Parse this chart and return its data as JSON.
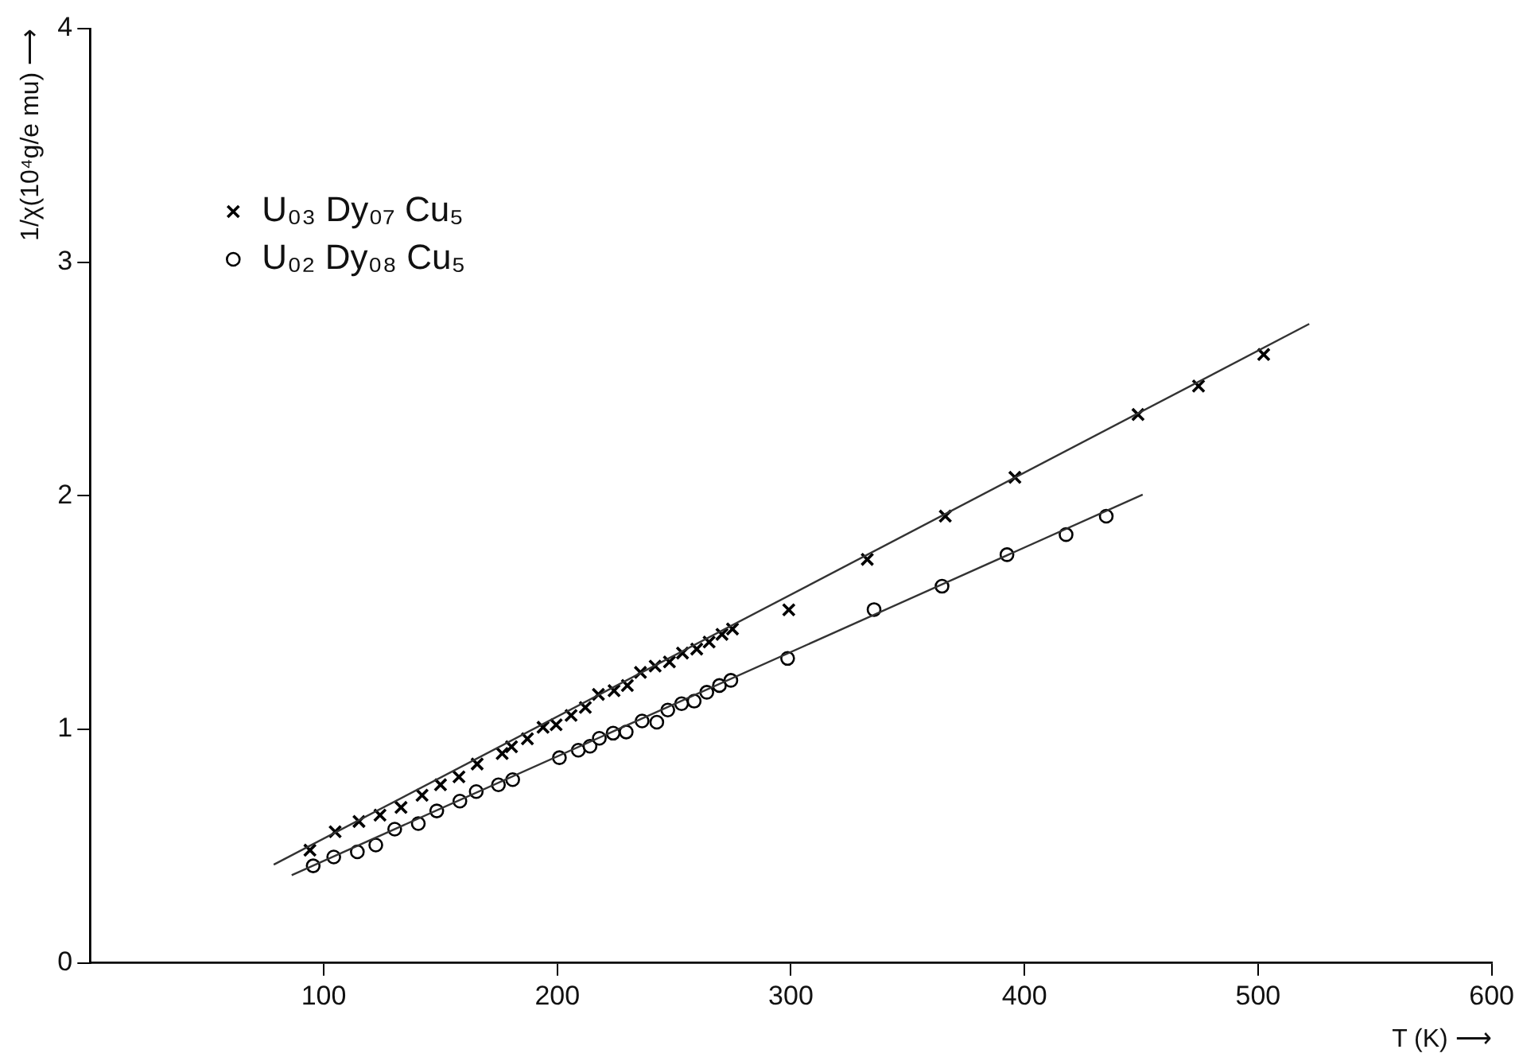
{
  "chart_data": {
    "type": "scatter",
    "xlabel": "T (K) ⟶",
    "ylabel": "1/χ(10⁴g/e mu) ⟶",
    "xlim": [
      0,
      600
    ],
    "xticks": [
      100,
      200,
      300,
      400,
      500,
      600
    ],
    "ylim": [
      0,
      4
    ],
    "yticks": [
      0,
      1,
      2,
      3,
      4
    ],
    "grid": false,
    "legend": "top left",
    "series": [
      {
        "name": "U₀₃ Dy₀₇ Cu₅",
        "color": "#000000",
        "marker": "cross",
        "x": [
          94.1,
          104.9,
          115.1,
          124.1,
          133.1,
          142.1,
          150,
          157.9,
          165.7,
          176.4,
          180.4,
          187.2,
          193.9,
          199.5,
          205.9,
          212,
          217.6,
          224.3,
          230,
          235.6,
          241.9,
          248,
          253.6,
          259.7,
          265,
          270.5,
          275,
          299.1,
          332.7,
          366.1,
          395.9,
          448.6,
          474.5,
          502.4
        ],
        "values": [
          0.483,
          0.562,
          0.606,
          0.633,
          0.666,
          0.718,
          0.763,
          0.797,
          0.852,
          0.897,
          0.926,
          0.96,
          1.009,
          1.02,
          1.06,
          1.094,
          1.15,
          1.166,
          1.188,
          1.244,
          1.271,
          1.289,
          1.327,
          1.344,
          1.374,
          1.407,
          1.43,
          1.512,
          1.728,
          1.913,
          2.079,
          2.348,
          2.47,
          2.605
        ]
      },
      {
        "name": "U₀₂ Dy₀₈ Cu₅",
        "color": "#000000",
        "marker": "circle",
        "x": [
          95.5,
          104.3,
          114.4,
          122.3,
          130.4,
          140.5,
          148.4,
          158.3,
          165.3,
          174.8,
          180.9,
          200.9,
          209,
          214,
          218,
          223.9,
          229.5,
          236.3,
          242.6,
          247.3,
          253.2,
          258.6,
          264,
          269.4,
          274.3,
          298.6,
          335.6,
          364.7,
          392.5,
          417.8,
          435
        ],
        "values": [
          0.416,
          0.454,
          0.476,
          0.505,
          0.573,
          0.597,
          0.651,
          0.693,
          0.734,
          0.763,
          0.785,
          0.879,
          0.911,
          0.928,
          0.962,
          0.984,
          0.989,
          1.036,
          1.031,
          1.083,
          1.11,
          1.121,
          1.159,
          1.188,
          1.21,
          1.304,
          1.513,
          1.613,
          1.748,
          1.834,
          1.913
        ]
      },
      {
        "type": "line",
        "color": "#333333",
        "marker": "none",
        "line_style": "solid",
        "x": [
          78.6,
          521.9
        ],
        "values": [
          0.421,
          2.736
        ]
      },
      {
        "type": "line",
        "color": "#333333",
        "marker": "none",
        "line_style": "solid",
        "x": [
          86.3,
          450.6
        ],
        "values": [
          0.376,
          2.005
        ]
      }
    ]
  }
}
